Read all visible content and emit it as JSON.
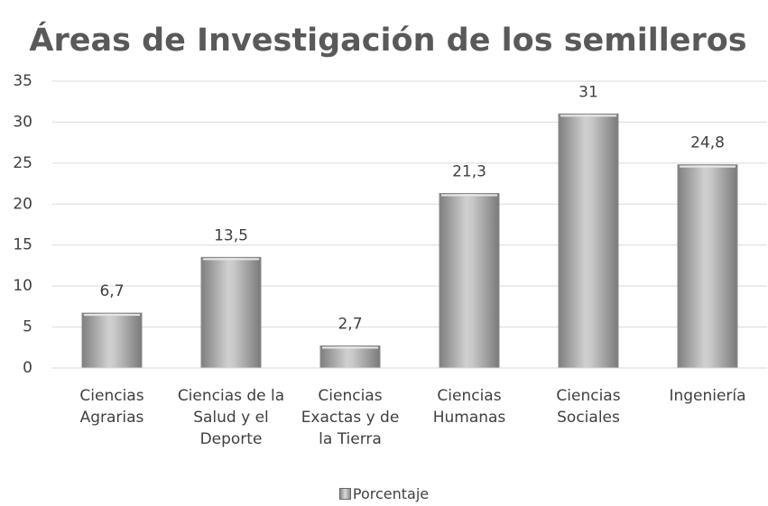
{
  "chart_data": {
    "type": "bar",
    "title": "Áreas de Investigación de los semilleros",
    "categories": [
      "Ciencias Agrarias",
      "Ciencias de la Salud y el Deporte",
      "Ciencias Exactas y de la Tierra",
      "Ciencias Humanas",
      "Ciencias Sociales",
      "Ingeniería"
    ],
    "series": [
      {
        "name": "Porcentaje",
        "color": "#a6a6a6",
        "values": [
          6.7,
          13.5,
          2.7,
          21.3,
          31,
          24.8
        ],
        "value_labels": [
          "6,7",
          "13,5",
          "2,7",
          "21,3",
          "31",
          "24,8"
        ]
      }
    ],
    "ylim": [
      0,
      35
    ],
    "yticks": [
      0,
      5,
      10,
      15,
      20,
      25,
      30,
      35
    ],
    "grid": true,
    "legend": "bottom"
  }
}
